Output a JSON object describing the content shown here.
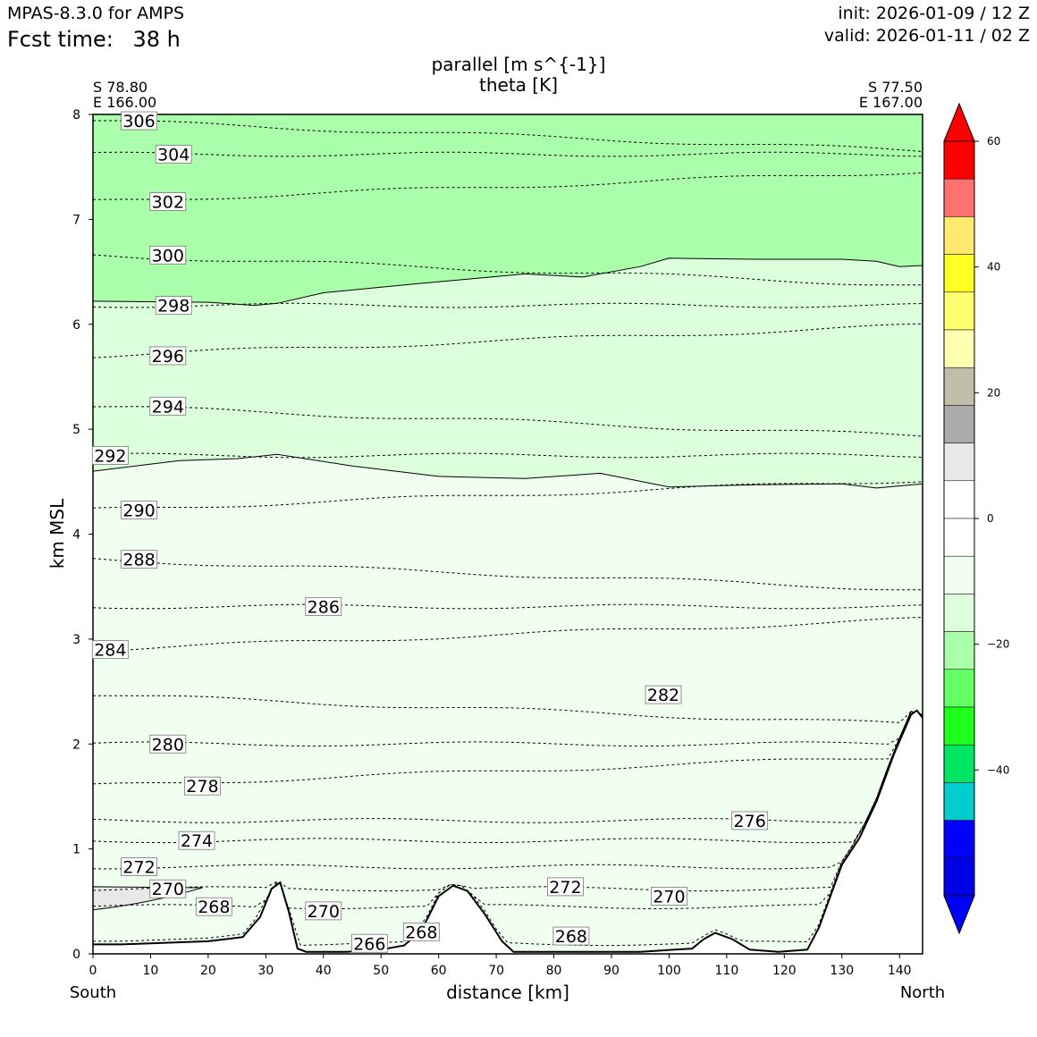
{
  "header": {
    "model": "MPAS-8.3.0 for AMPS",
    "fcst_label": "Fcst time:",
    "fcst_value": "38 h",
    "init": "init: 2026-01-09 / 12 Z",
    "valid": "valid: 2026-01-11 / 02 Z"
  },
  "chart_data": {
    "type": "cross-section",
    "title": "parallel [m s^{-1}]",
    "subtitle": "theta [K]",
    "xlabel": "distance [km]",
    "ylabel": "km MSL",
    "xlim": [
      0,
      144
    ],
    "ylim": [
      0,
      8
    ],
    "xticks": [
      "0",
      "10",
      "20",
      "30",
      "40",
      "50",
      "60",
      "70",
      "80",
      "90",
      "100",
      "110",
      "120",
      "130",
      "140"
    ],
    "yticks": [
      "0",
      "1",
      "2",
      "3",
      "4",
      "5",
      "6",
      "7",
      "8"
    ],
    "left_endpoint": {
      "lat": "S 78.80",
      "lon": "E 166.00",
      "label": "South"
    },
    "right_endpoint": {
      "lat": "S 77.50",
      "lon": "E 167.00",
      "label": "North"
    },
    "colorbar": {
      "range": [
        -60,
        60
      ],
      "step": 5,
      "ticks": [
        "60",
        "40",
        "20",
        "0",
        "−20",
        "−40"
      ],
      "colors_top_to_bottom": [
        "#ff0000",
        "#ff7070",
        "#ffe86e",
        "#ffff24",
        "#ffff70",
        "#ffffaf",
        "#bfbfa7",
        "#aaaaaa",
        "#e8e8e8",
        "#ffffff",
        "#ffffff",
        "#f0fff0",
        "#dcffdc",
        "#aaffaa",
        "#64ff64",
        "#1eff1e",
        "#00e664",
        "#00cdcd",
        "#0000ff",
        "#0000e6"
      ],
      "over_color": "#ff0000",
      "under_color": "#0000ff"
    },
    "filled_bands": [
      {
        "name": "-10 to -5 m/s",
        "color": "#f0fff0",
        "top_profile": [
          [
            0,
            4.6
          ],
          [
            15,
            4.7
          ],
          [
            25,
            4.72
          ],
          [
            32,
            4.76
          ],
          [
            45,
            4.65
          ],
          [
            60,
            4.55
          ],
          [
            75,
            4.53
          ],
          [
            88,
            4.58
          ],
          [
            100,
            4.45
          ],
          [
            115,
            4.47
          ],
          [
            130,
            4.48
          ],
          [
            136,
            4.44
          ],
          [
            144,
            4.48
          ]
        ]
      },
      {
        "name": "-15 to -10 m/s",
        "color": "#dcffdc",
        "top_profile": [
          [
            0,
            6.22
          ],
          [
            20,
            6.21
          ],
          [
            28,
            6.18
          ],
          [
            32,
            6.2
          ],
          [
            40,
            6.3
          ],
          [
            55,
            6.38
          ],
          [
            75,
            6.48
          ],
          [
            85,
            6.45
          ],
          [
            95,
            6.55
          ],
          [
            100,
            6.63
          ],
          [
            115,
            6.62
          ],
          [
            130,
            6.62
          ],
          [
            136,
            6.6
          ],
          [
            140,
            6.55
          ],
          [
            144,
            6.56
          ]
        ]
      },
      {
        "name": "-20 to -15 m/s",
        "color": "#aaffaa",
        "top_profile": [
          [
            0,
            8.0
          ],
          [
            144,
            8.0
          ]
        ]
      }
    ],
    "terrain": [
      [
        0,
        0.09
      ],
      [
        5,
        0.09
      ],
      [
        10,
        0.1
      ],
      [
        20,
        0.12
      ],
      [
        26,
        0.16
      ],
      [
        29,
        0.35
      ],
      [
        31,
        0.62
      ],
      [
        32.5,
        0.68
      ],
      [
        34,
        0.4
      ],
      [
        35.5,
        0.05
      ],
      [
        37,
        0.02
      ],
      [
        44,
        0.02
      ],
      [
        50,
        0.04
      ],
      [
        54,
        0.08
      ],
      [
        57,
        0.22
      ],
      [
        60,
        0.55
      ],
      [
        62.5,
        0.65
      ],
      [
        65,
        0.6
      ],
      [
        68,
        0.38
      ],
      [
        71,
        0.12
      ],
      [
        73,
        0.02
      ],
      [
        80,
        0.02
      ],
      [
        95,
        0.02
      ],
      [
        104,
        0.05
      ],
      [
        106,
        0.14
      ],
      [
        108,
        0.2
      ],
      [
        111,
        0.14
      ],
      [
        114,
        0.04
      ],
      [
        119,
        0.02
      ],
      [
        124,
        0.04
      ],
      [
        126,
        0.25
      ],
      [
        128,
        0.55
      ],
      [
        130,
        0.85
      ],
      [
        133,
        1.1
      ],
      [
        136,
        1.45
      ],
      [
        139,
        1.9
      ],
      [
        142,
        2.28
      ],
      [
        143,
        2.32
      ],
      [
        144,
        2.25
      ]
    ],
    "theta_contours": [
      {
        "level": "306",
        "y": 7.94,
        "label_x": 8
      },
      {
        "level": "304",
        "y": 7.62,
        "label_x": 14
      },
      {
        "level": "302",
        "y": 7.17,
        "label_x": 13
      },
      {
        "level": "300",
        "y": 6.66,
        "label_x": 13
      },
      {
        "level": "298",
        "y": 6.18,
        "label_x": 14
      },
      {
        "level": "296",
        "y": 5.7,
        "label_x": 13
      },
      {
        "level": "294",
        "y": 5.22,
        "label_x": 13
      },
      {
        "level": "292",
        "y": 4.75,
        "label_x": 3
      },
      {
        "level": "290",
        "y": 4.23,
        "label_x": 8
      },
      {
        "level": "288",
        "y": 3.76,
        "label_x": 8
      },
      {
        "level": "286",
        "y": 3.31,
        "label_x": 40
      },
      {
        "level": "284",
        "y": 2.9,
        "label_x": 3
      },
      {
        "level": "282",
        "y": 2.47,
        "label_x": 99
      },
      {
        "level": "280",
        "y": 2.0,
        "label_x": 13
      },
      {
        "level": "278",
        "y": 1.6,
        "label_x": 19
      },
      {
        "level": "276",
        "y": 1.27,
        "label_x": 114
      },
      {
        "level": "274",
        "y": 1.08,
        "label_x": 18
      },
      {
        "level": "272",
        "y": 0.83,
        "label_x": 8
      },
      {
        "level": "270",
        "y": 0.62,
        "label_x": 13
      },
      {
        "level": "268",
        "y": 0.45,
        "label_x": 21
      },
      {
        "level": "266",
        "y": 0.1,
        "label_x": 48
      }
    ],
    "extra_labels": [
      {
        "text": "270",
        "x": 40,
        "y": 0.41
      },
      {
        "text": "272",
        "x": 82,
        "y": 0.64
      },
      {
        "text": "270",
        "x": 100,
        "y": 0.55
      },
      {
        "text": "268",
        "x": 57,
        "y": 0.21
      },
      {
        "text": "268",
        "x": 83,
        "y": 0.17
      }
    ]
  }
}
